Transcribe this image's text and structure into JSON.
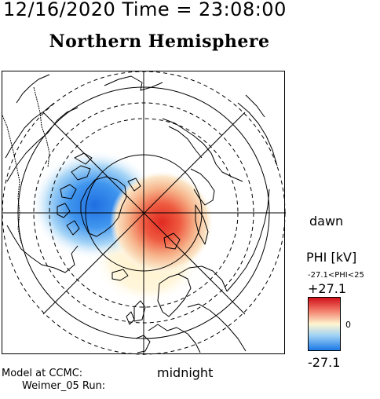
{
  "header": {
    "date_time": "12/16/2020 Time = 23:08:00",
    "hemisphere_title": "Northern Hemisphere"
  },
  "map": {
    "orientation_labels": {
      "right": "dawn",
      "bottom": "midnight"
    },
    "potential_pattern": {
      "positive_cell": {
        "location": "dawn side, just below pole",
        "color": "#e8302a"
      },
      "negative_cell": {
        "location": "dusk side, upper left (over Canada/Greenland)",
        "color": "#1e7ee8"
      }
    }
  },
  "legend": {
    "quantity": "PHI [kV]",
    "range_text": "-27.1<PHI<25",
    "max": "+27.1",
    "zero": "0",
    "min": "-27.1",
    "colors": {
      "high": "#d0101a",
      "mid": "#fff5d0",
      "low": "#1a78e6"
    }
  },
  "footer": {
    "model_line": "Model at CCMC:",
    "run_line": "Weimer_05 Run:"
  }
}
